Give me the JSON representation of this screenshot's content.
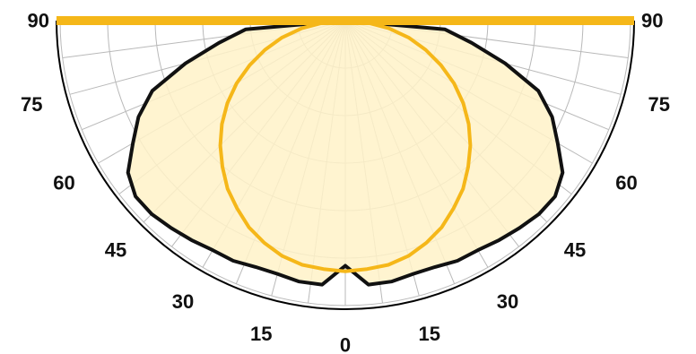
{
  "chart_data": {
    "type": "polar",
    "angle_ticks_left": [
      "90",
      "75",
      "60",
      "45",
      "30",
      "15"
    ],
    "angle_ticks_center": "0",
    "angle_ticks_right": [
      "15",
      "30",
      "45",
      "60",
      "75",
      "90"
    ],
    "angles_deg": [
      0,
      15,
      30,
      45,
      60,
      75,
      90
    ],
    "grid": true,
    "colors": {
      "primary_curve": "#111111",
      "primary_fill": "#fff2c8",
      "secondary_curve": "#f5b719",
      "grid": "#b9b9b9",
      "frame": "#000000"
    },
    "series": [
      {
        "angles": [
          0,
          5,
          10,
          15,
          20,
          25,
          30,
          35,
          40,
          45,
          50,
          55,
          60,
          65,
          70,
          75,
          80,
          85,
          90
        ],
        "values": [
          0.86,
          0.93,
          0.93,
          0.92,
          0.92,
          0.93,
          0.93,
          0.94,
          0.95,
          0.96,
          0.96,
          0.93,
          0.86,
          0.8,
          0.72,
          0.58,
          0.45,
          0.35,
          0.0
        ]
      },
      {
        "angles": [
          0,
          5,
          10,
          15,
          20,
          25,
          30,
          35,
          40,
          45,
          50,
          55,
          60,
          65,
          70,
          75,
          80,
          85,
          90
        ],
        "values": [
          0.88,
          0.875,
          0.87,
          0.855,
          0.83,
          0.8,
          0.76,
          0.72,
          0.67,
          0.62,
          0.565,
          0.505,
          0.44,
          0.37,
          0.3,
          0.23,
          0.155,
          0.075,
          0.0
        ]
      }
    ]
  }
}
